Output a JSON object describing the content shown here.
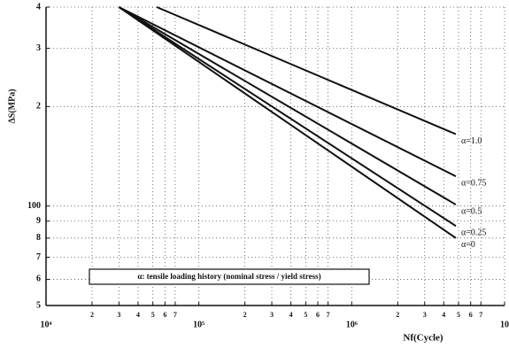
{
  "chart_data": {
    "type": "line",
    "x_label": "Nf(Cycle)",
    "y_label": "ΔS(MPa)",
    "annotation": "α: tensile loading history (nominal stress / yield stress)",
    "log_x": true,
    "log_y": true,
    "grid": true,
    "xlim": [
      10000,
      10000000
    ],
    "ylim": [
      50,
      400
    ],
    "xticks": [
      {
        "value": 10000,
        "label": "10⁴"
      },
      {
        "value": 20000,
        "label": "2"
      },
      {
        "value": 30000,
        "label": "3"
      },
      {
        "value": 40000,
        "label": "4"
      },
      {
        "value": 50000,
        "label": "5"
      },
      {
        "value": 60000,
        "label": "6"
      },
      {
        "value": 70000,
        "label": "7"
      },
      {
        "value": 100000,
        "label": "10⁵"
      },
      {
        "value": 200000,
        "label": "2"
      },
      {
        "value": 300000,
        "label": "3"
      },
      {
        "value": 400000,
        "label": "4"
      },
      {
        "value": 500000,
        "label": "5"
      },
      {
        "value": 600000,
        "label": "6"
      },
      {
        "value": 700000,
        "label": "7"
      },
      {
        "value": 1000000,
        "label": "10⁶"
      },
      {
        "value": 2000000,
        "label": "2"
      },
      {
        "value": 3000000,
        "label": "3"
      },
      {
        "value": 4000000,
        "label": "4"
      },
      {
        "value": 5000000,
        "label": "5"
      },
      {
        "value": 6000000,
        "label": "6"
      },
      {
        "value": 7000000,
        "label": "7"
      },
      {
        "value": 10000000,
        "label": "10"
      }
    ],
    "yticks": [
      {
        "value": 50,
        "label": "5"
      },
      {
        "value": 60,
        "label": "6"
      },
      {
        "value": 70,
        "label": "7"
      },
      {
        "value": 80,
        "label": "8"
      },
      {
        "value": 90,
        "label": "9"
      },
      100,
      {
        "value": 200,
        "label": "2"
      },
      {
        "value": 300,
        "label": "3"
      },
      {
        "value": 400,
        "label": "4"
      }
    ],
    "series": [
      {
        "name": "α=1.0",
        "color": "#111111",
        "x": [
          53000,
          4800000
        ],
        "values": [
          400,
          165
        ]
      },
      {
        "name": "α=0.75",
        "color": "#111111",
        "x": [
          30000,
          4800000
        ],
        "values": [
          400,
          123
        ]
      },
      {
        "name": "α=0.5",
        "color": "#111111",
        "x": [
          30000,
          4800000
        ],
        "values": [
          400,
          101
        ]
      },
      {
        "name": "α=0.25",
        "color": "#111111",
        "x": [
          30000,
          4800000
        ],
        "values": [
          400,
          87
        ]
      },
      {
        "name": "α=0",
        "color": "#111111",
        "x": [
          30000,
          4800000
        ],
        "values": [
          400,
          80
        ]
      }
    ]
  }
}
